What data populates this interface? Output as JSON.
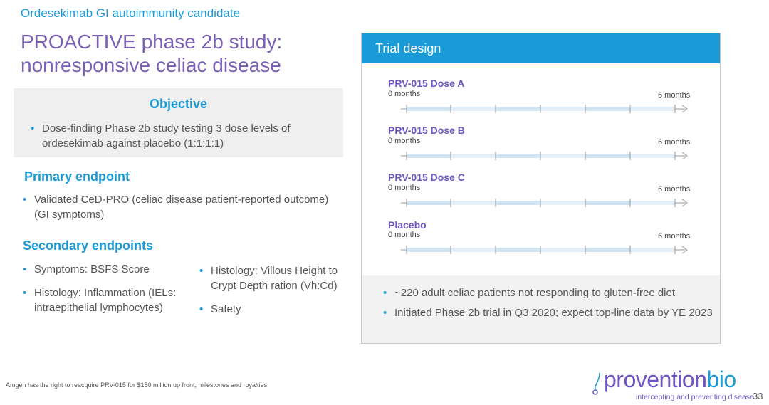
{
  "header": {
    "subtitle": "Ordesekimab GI autoimmunity candidate",
    "title": "PROACTIVE phase 2b study: nonresponsive celiac disease"
  },
  "objective": {
    "heading": "Objective",
    "text": "Dose-finding Phase 2b study testing 3 dose levels of ordesekimab against placebo (1:1:1:1)"
  },
  "primary": {
    "heading": "Primary endpoint",
    "items": [
      "Validated CeD-PRO (celiac disease patient-reported outcome) (GI symptoms)"
    ]
  },
  "secondary": {
    "heading": "Secondary endpoints",
    "left": [
      "Symptoms: BSFS Score",
      "Histology: Inflammation (IELs: intraepithelial lymphocytes)"
    ],
    "right": [
      "Histology: Villous Height to Crypt Depth ration (Vh:Cd)",
      "Safety"
    ]
  },
  "trial": {
    "heading": "Trial design",
    "start_label": "0 months",
    "end_label": "6 months",
    "arms": [
      "PRV-015 Dose A",
      "PRV-015 Dose B",
      "PRV-015 Dose C",
      "Placebo"
    ],
    "bullets": [
      "~220 adult celiac patients not responding to gluten-free diet",
      "Initiated Phase 2b trial in Q3 2020; expect top-line data by YE 2023"
    ]
  },
  "footer": {
    "note": "Amgen has the right to reacquire PRV-015 for $150 million up front, milestones and royalties",
    "logo_main": "provention",
    "logo_accent": "bio",
    "tagline": "intercepting and preventing disease",
    "page": "33"
  },
  "colors": {
    "accent_blue": "#1a9ad6",
    "brand_purple": "#6d56c4",
    "title_purple": "#7a5fb5"
  }
}
